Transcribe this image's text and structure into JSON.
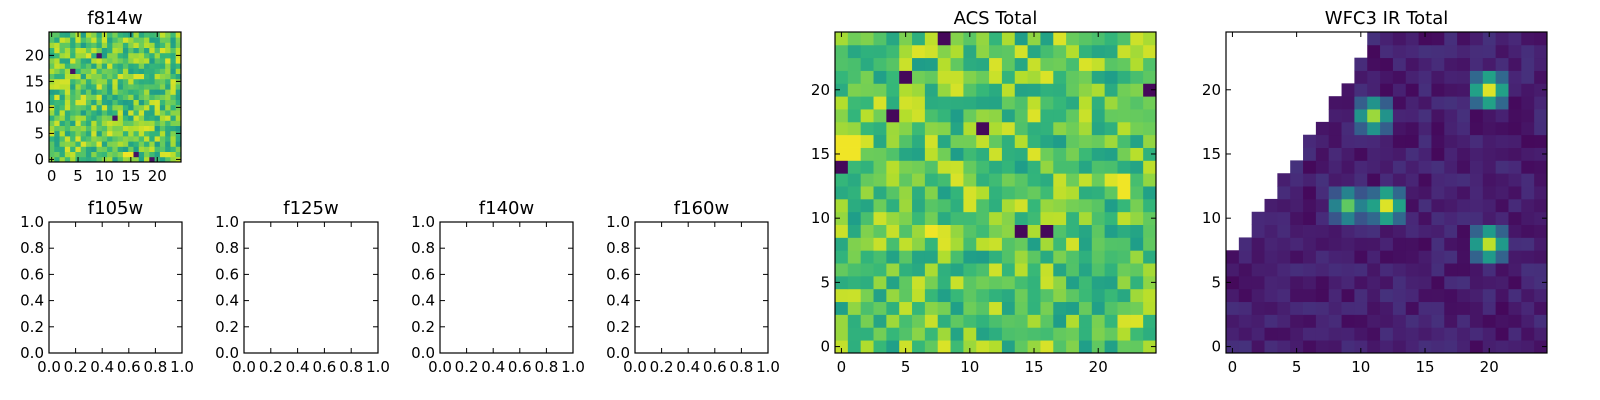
{
  "colors": {
    "cell_fill": "#ffffff"
  },
  "chart_data": [
    {
      "id": "f814w",
      "type": "heatmap",
      "title": "f814w",
      "xlim": [
        -0.5,
        24.5
      ],
      "ylim": [
        -0.5,
        24.5
      ],
      "xticks": [
        0,
        5,
        10,
        15,
        20
      ],
      "yticks": [
        0,
        5,
        10,
        15,
        20
      ],
      "colormap": "viridis",
      "pattern": "noisy-high"
    },
    {
      "id": "f105w",
      "type": "heatmap",
      "title": "f105w",
      "xlim": [
        0,
        1
      ],
      "ylim": [
        0,
        1
      ],
      "xticks": [
        "0.0",
        "0.2",
        "0.4",
        "0.6",
        "0.8",
        "1.0"
      ],
      "yticks": [
        "0.0",
        "0.2",
        "0.4",
        "0.6",
        "0.8",
        "1.0"
      ],
      "empty": true
    },
    {
      "id": "f125w",
      "type": "heatmap",
      "title": "f125w",
      "xlim": [
        0,
        1
      ],
      "ylim": [
        0,
        1
      ],
      "xticks": [
        "0.0",
        "0.2",
        "0.4",
        "0.6",
        "0.8",
        "1.0"
      ],
      "yticks": [
        "0.0",
        "0.2",
        "0.4",
        "0.6",
        "0.8",
        "1.0"
      ],
      "empty": true
    },
    {
      "id": "f140w",
      "type": "heatmap",
      "title": "f140w",
      "xlim": [
        0,
        1
      ],
      "ylim": [
        0,
        1
      ],
      "xticks": [
        "0.0",
        "0.2",
        "0.4",
        "0.6",
        "0.8",
        "1.0"
      ],
      "yticks": [
        "0.0",
        "0.2",
        "0.4",
        "0.6",
        "0.8",
        "1.0"
      ],
      "empty": true
    },
    {
      "id": "f160w",
      "type": "heatmap",
      "title": "f160w",
      "xlim": [
        0,
        1
      ],
      "ylim": [
        0,
        1
      ],
      "xticks": [
        "0.0",
        "0.2",
        "0.4",
        "0.6",
        "0.8",
        "1.0"
      ],
      "yticks": [
        "0.0",
        "0.2",
        "0.4",
        "0.6",
        "0.8",
        "1.0"
      ],
      "empty": true
    },
    {
      "id": "acs_total",
      "type": "heatmap",
      "title": "ACS Total",
      "xlim": [
        -0.5,
        24.5
      ],
      "ylim": [
        -0.5,
        24.5
      ],
      "xticks": [
        0,
        5,
        10,
        15,
        20
      ],
      "yticks": [
        0,
        5,
        10,
        15,
        20
      ],
      "colormap": "viridis",
      "pattern": "noisy-high",
      "dark_cells": [
        [
          24,
          20
        ],
        [
          16,
          9
        ],
        [
          14,
          9
        ],
        [
          11,
          17
        ],
        [
          8,
          24
        ],
        [
          4,
          18
        ],
        [
          0,
          14
        ],
        [
          5,
          21
        ]
      ],
      "bright_cells": [
        [
          0,
          15
        ],
        [
          0,
          16
        ],
        [
          1,
          15
        ],
        [
          1,
          16
        ],
        [
          7,
          9
        ],
        [
          22,
          12
        ],
        [
          22,
          13
        ]
      ]
    },
    {
      "id": "wfc3_ir_total",
      "type": "heatmap",
      "title": "WFC3 IR Total",
      "xlim": [
        -0.5,
        24.5
      ],
      "ylim": [
        -0.5,
        24.5
      ],
      "xticks": [
        0,
        5,
        10,
        15,
        20
      ],
      "yticks": [
        0,
        5,
        10,
        15,
        20
      ],
      "colormap": "viridis",
      "pattern": "dark-with-sources",
      "blank_region": "upper-left triangle (no data)",
      "sources": [
        {
          "x": 11,
          "y": 18,
          "peak": 0.85
        },
        {
          "x": 12,
          "y": 11,
          "peak": 0.95
        },
        {
          "x": 9,
          "y": 11,
          "peak": 0.75
        },
        {
          "x": 20,
          "y": 20,
          "peak": 0.95
        },
        {
          "x": 20,
          "y": 8,
          "peak": 0.9
        }
      ]
    }
  ]
}
